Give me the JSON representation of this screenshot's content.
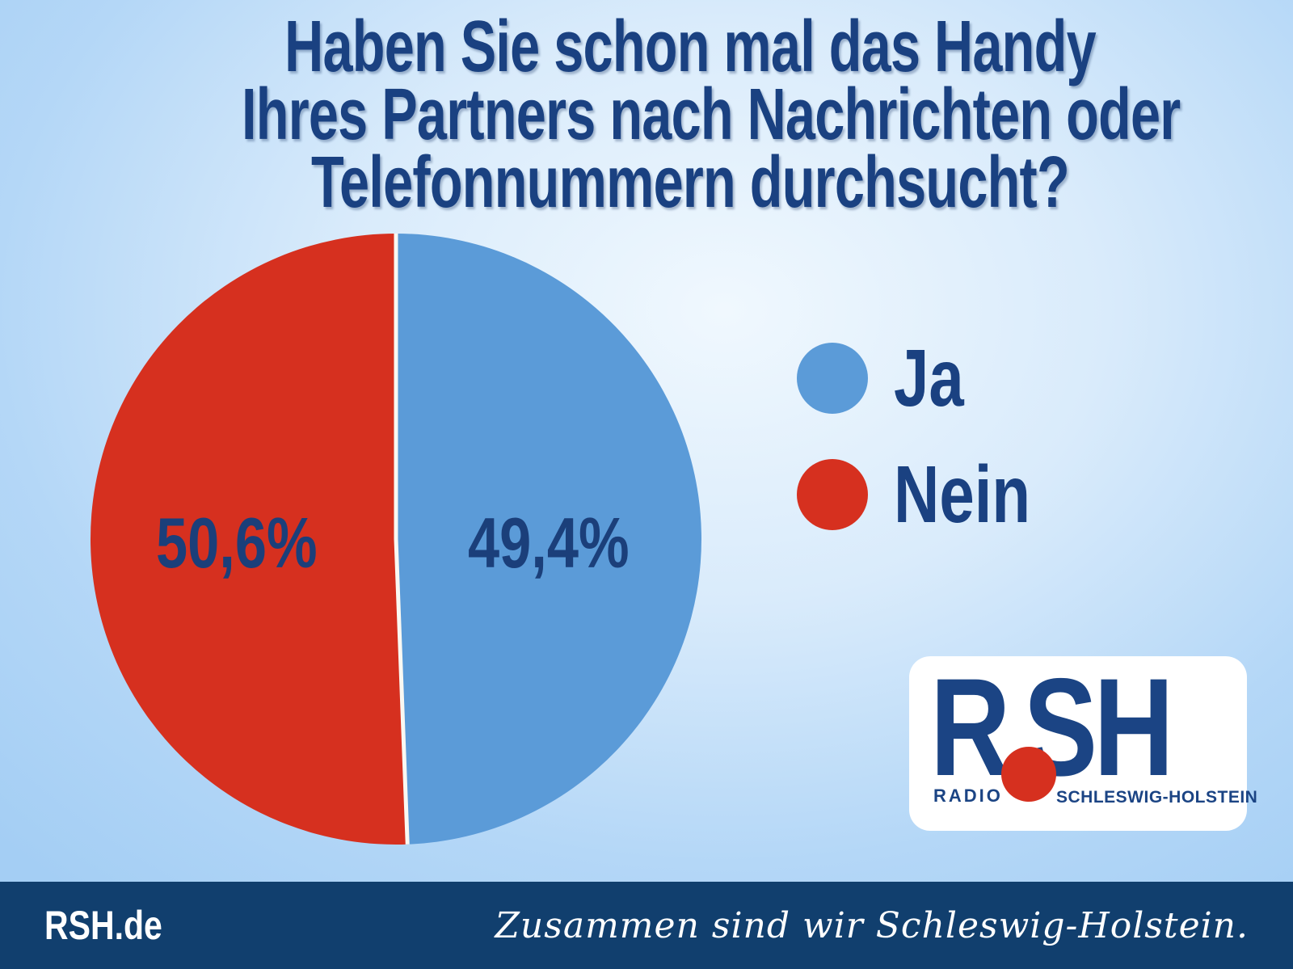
{
  "title": {
    "lines": [
      "Haben Sie schon mal das Handy",
      "Ihres Partners nach Nachrichten oder",
      "Telefonnummern durchsucht?"
    ]
  },
  "chart_data": {
    "type": "pie",
    "title": "Haben Sie schon mal das Handy Ihres Partners nach Nachrichten oder Telefonnummern durchsucht?",
    "labels": [
      "Ja",
      "Nein"
    ],
    "values": [
      49.4,
      50.6
    ],
    "display_values": [
      "49,4%",
      "50,6%"
    ],
    "colors": [
      "#5b9bd8",
      "#d6301f"
    ],
    "start_angle": "12-o'clock",
    "direction": "clockwise",
    "divider_color": "#faf8f2",
    "legend_position": "right",
    "label_color": "#1b3f7a"
  },
  "legend": {
    "items": [
      {
        "label": "Ja"
      },
      {
        "label": "Nein"
      }
    ]
  },
  "logo": {
    "letters_left": "R",
    "letters_right": "SH",
    "sub_left": "RADIO",
    "sub_right": "SCHLESWIG-HOLSTEIN",
    "dot_color": "#d6301f",
    "text_color": "#1b4484"
  },
  "footer": {
    "site": "RSH.de",
    "slogan": "Zusammen sind wir Schleswig-Holstein.",
    "bar_color": "#113f6e"
  },
  "colors": {
    "background_edge": "#a4cef4",
    "background_center": "#f0f8fe",
    "headline": "#1a4181"
  }
}
